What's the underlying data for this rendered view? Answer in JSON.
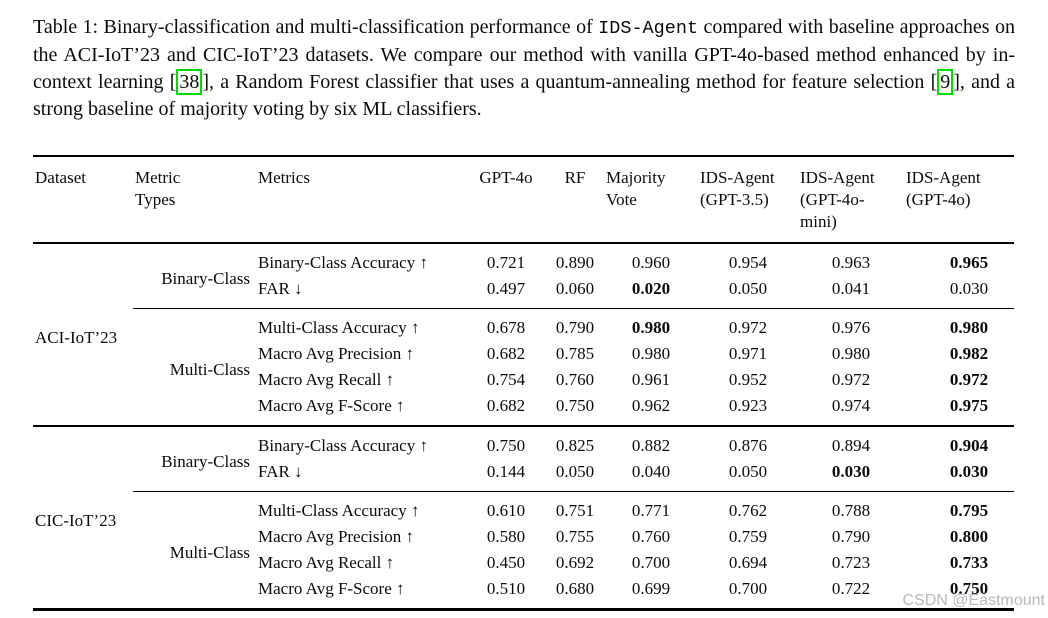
{
  "colors": {
    "cite_box_green": "#00dd00",
    "watermark_gray": "#b5bac0",
    "rule_black": "#000000"
  },
  "caption": {
    "label": "Table 1:",
    "segments": [
      {
        "text": "Table 1: Binary-classification and multi-classification performance of ",
        "style": "text"
      },
      {
        "text": "IDS-Agent",
        "style": "mono"
      },
      {
        "text": " compared with baseline approaches on the ACI-IoT’23 and CIC-IoT’23 datasets. We compare our method with vanilla GPT-4o-based method enhanced by in-context learning ",
        "style": "text"
      },
      {
        "text": "[",
        "style": "text"
      },
      {
        "text": "38",
        "style": "cite"
      },
      {
        "text": "], a Random Forest classifier that uses a quantum-annealing method for feature selection ",
        "style": "text"
      },
      {
        "text": "[",
        "style": "text"
      },
      {
        "text": "9",
        "style": "cite"
      },
      {
        "text": "], and a strong baseline of majority voting by six ML classifiers.",
        "style": "text"
      }
    ]
  },
  "watermark": {
    "text": "CSDN @Eastmount"
  },
  "table": {
    "columns": [
      {
        "label": "Dataset",
        "lines": [
          "Dataset"
        ]
      },
      {
        "label": "Metric Types",
        "lines": [
          "Metric",
          "Types"
        ]
      },
      {
        "label": "Metrics",
        "lines": [
          "Metrics"
        ]
      },
      {
        "label": "GPT-4o",
        "lines": [
          "GPT-4o"
        ]
      },
      {
        "label": "RF",
        "lines": [
          "RF"
        ]
      },
      {
        "label": "Majority Vote",
        "lines": [
          "Majority",
          "Vote"
        ]
      },
      {
        "label": "IDS-Agent (GPT-3.5)",
        "lines": [
          "IDS-Agent",
          "(GPT-3.5)"
        ]
      },
      {
        "label": "IDS-Agent (GPT-4o-mini)",
        "lines": [
          "IDS-Agent",
          "(GPT-4o-",
          "mini)"
        ]
      },
      {
        "label": "IDS-Agent (GPT-4o)",
        "lines": [
          "IDS-Agent",
          "(GPT-4o)"
        ]
      }
    ],
    "groups": [
      {
        "dataset": "ACI-IoT’23",
        "sections": [
          {
            "metric_type": "Binary-Class",
            "rows": [
              {
                "metric": "Binary-Class Accuracy ↑",
                "values": [
                  "0.721",
                  "0.890",
                  "0.960",
                  "0.954",
                  "0.963",
                  "0.965"
                ],
                "bold": [
                  5
                ]
              },
              {
                "metric": "FAR ↓",
                "values": [
                  "0.497",
                  "0.060",
                  "0.020",
                  "0.050",
                  "0.041",
                  "0.030"
                ],
                "bold": [
                  2
                ]
              }
            ]
          },
          {
            "metric_type": "Multi-Class",
            "rows": [
              {
                "metric": "Multi-Class Accuracy ↑",
                "values": [
                  "0.678",
                  "0.790",
                  "0.980",
                  "0.972",
                  "0.976",
                  "0.980"
                ],
                "bold": [
                  2,
                  5
                ]
              },
              {
                "metric": "Macro Avg Precision ↑",
                "values": [
                  "0.682",
                  "0.785",
                  "0.980",
                  "0.971",
                  "0.980",
                  "0.982"
                ],
                "bold": [
                  5
                ]
              },
              {
                "metric": "Macro Avg Recall ↑",
                "values": [
                  "0.754",
                  "0.760",
                  "0.961",
                  "0.952",
                  "0.972",
                  "0.972"
                ],
                "bold": [
                  5
                ]
              },
              {
                "metric": "Macro Avg F-Score ↑",
                "values": [
                  "0.682",
                  "0.750",
                  "0.962",
                  "0.923",
                  "0.974",
                  "0.975"
                ],
                "bold": [
                  5
                ]
              }
            ]
          }
        ]
      },
      {
        "dataset": "CIC-IoT’23",
        "sections": [
          {
            "metric_type": "Binary-Class",
            "rows": [
              {
                "metric": "Binary-Class Accuracy ↑",
                "values": [
                  "0.750",
                  "0.825",
                  "0.882",
                  "0.876",
                  "0.894",
                  "0.904"
                ],
                "bold": [
                  5
                ]
              },
              {
                "metric": "FAR ↓",
                "values": [
                  "0.144",
                  "0.050",
                  "0.040",
                  "0.050",
                  "0.030",
                  "0.030"
                ],
                "bold": [
                  4,
                  5
                ]
              }
            ]
          },
          {
            "metric_type": "Multi-Class",
            "rows": [
              {
                "metric": "Multi-Class Accuracy ↑",
                "values": [
                  "0.610",
                  "0.751",
                  "0.771",
                  "0.762",
                  "0.788",
                  "0.795"
                ],
                "bold": [
                  5
                ]
              },
              {
                "metric": "Macro Avg Precision ↑",
                "values": [
                  "0.580",
                  "0.755",
                  "0.760",
                  "0.759",
                  "0.790",
                  "0.800"
                ],
                "bold": [
                  5
                ]
              },
              {
                "metric": "Macro Avg Recall ↑",
                "values": [
                  "0.450",
                  "0.692",
                  "0.700",
                  "0.694",
                  "0.723",
                  "0.733"
                ],
                "bold": [
                  5
                ]
              },
              {
                "metric": "Macro Avg F-Score ↑",
                "values": [
                  "0.510",
                  "0.680",
                  "0.699",
                  "0.700",
                  "0.722",
                  "0.750"
                ],
                "bold": [
                  5
                ]
              }
            ]
          }
        ]
      }
    ]
  }
}
